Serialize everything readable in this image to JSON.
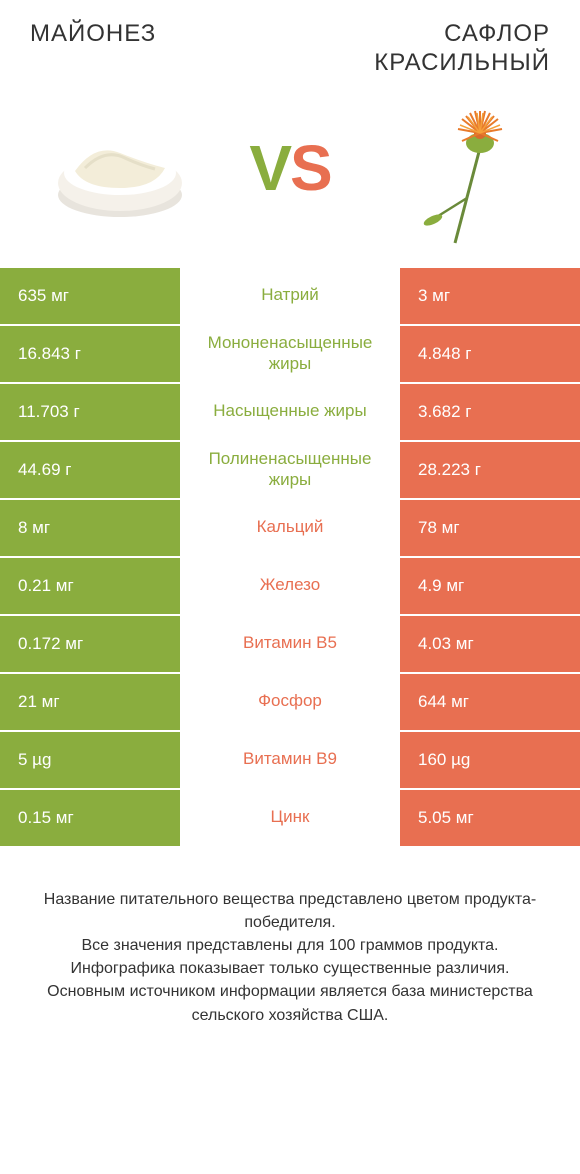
{
  "colors": {
    "green": "#8aad3e",
    "orange": "#e86f51",
    "text": "#333333",
    "bg": "#ffffff"
  },
  "header": {
    "left_title": "МАЙОНЕЗ",
    "right_title": "САФЛОР\nКРАСИЛЬНЫЙ",
    "vs_v": "V",
    "vs_s": "S"
  },
  "rows": [
    {
      "left": "635 мг",
      "label": "Натрий",
      "right": "3 мг",
      "winner": "left"
    },
    {
      "left": "16.843 г",
      "label": "Мононенасыщенные жиры",
      "right": "4.848 г",
      "winner": "left"
    },
    {
      "left": "11.703 г",
      "label": "Насыщенные жиры",
      "right": "3.682 г",
      "winner": "left"
    },
    {
      "left": "44.69 г",
      "label": "Полиненасыщенные жиры",
      "right": "28.223 г",
      "winner": "left"
    },
    {
      "left": "8 мг",
      "label": "Кальций",
      "right": "78 мг",
      "winner": "right"
    },
    {
      "left": "0.21 мг",
      "label": "Железо",
      "right": "4.9 мг",
      "winner": "right"
    },
    {
      "left": "0.172 мг",
      "label": "Витамин B5",
      "right": "4.03 мг",
      "winner": "right"
    },
    {
      "left": "21 мг",
      "label": "Фосфор",
      "right": "644 мг",
      "winner": "right"
    },
    {
      "left": "5 µg",
      "label": "Витамин B9",
      "right": "160 µg",
      "winner": "right"
    },
    {
      "left": "0.15 мг",
      "label": "Цинк",
      "right": "5.05 мг",
      "winner": "right"
    }
  ],
  "footer": {
    "line1": "Название питательного вещества представлено цветом продукта-победителя.",
    "line2": "Все значения представлены для 100 граммов продукта.",
    "line3": "Инфографика показывает только существенные различия.",
    "line4": "Основным источником информации является база министерства сельского хозяйства США."
  }
}
